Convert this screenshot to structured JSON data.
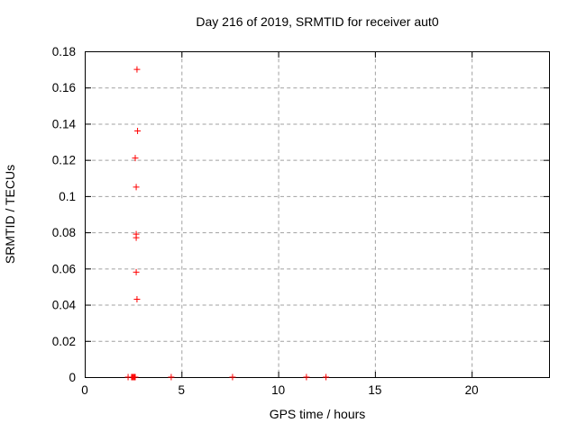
{
  "window": {
    "background": "#ffffff"
  },
  "chart_data": {
    "type": "scatter",
    "title": "Day 216 of 2019, SRMTID for receiver aut0",
    "xlabel": "GPS time / hours",
    "ylabel": "SRMTID / TECUs",
    "xlim": [
      0,
      24
    ],
    "ylim": [
      0,
      0.18
    ],
    "xticks": {
      "values": [
        0,
        5,
        10,
        15,
        20
      ],
      "labels": [
        "0",
        "5",
        "10",
        "15",
        "20"
      ]
    },
    "yticks": {
      "values": [
        0,
        0.02,
        0.04,
        0.06,
        0.08,
        0.1,
        0.12,
        0.14,
        0.16,
        0.18
      ],
      "labels": [
        "0",
        "0.02",
        "0.04",
        "0.06",
        "0.08",
        "0.1",
        "0.12",
        "0.14",
        "0.16",
        "0.18"
      ]
    },
    "grid": true,
    "legend": "none",
    "marker": {
      "shape": "plus",
      "color": "#ff0000",
      "size": 7
    },
    "series": [
      {
        "name": "SRMTID",
        "points": [
          [
            2.7,
            0.17
          ],
          [
            2.73,
            0.136
          ],
          [
            2.61,
            0.121
          ],
          [
            2.66,
            0.105
          ],
          [
            2.66,
            0.079
          ],
          [
            2.66,
            0.077
          ],
          [
            2.66,
            0.058
          ],
          [
            2.7,
            0.043
          ],
          [
            2.24,
            0
          ],
          [
            2.42,
            0
          ],
          [
            2.46,
            0
          ],
          [
            2.5,
            0
          ],
          [
            2.53,
            0
          ],
          [
            2.57,
            0
          ],
          [
            2.61,
            0
          ],
          [
            4.47,
            0
          ],
          [
            7.64,
            0
          ],
          [
            11.46,
            0
          ],
          [
            12.47,
            0
          ]
        ]
      }
    ]
  },
  "colors": {
    "marker": "#ff0000",
    "grid": "#a0a0a0",
    "axis": "#000000",
    "text": "#000000",
    "background": "#ffffff"
  }
}
